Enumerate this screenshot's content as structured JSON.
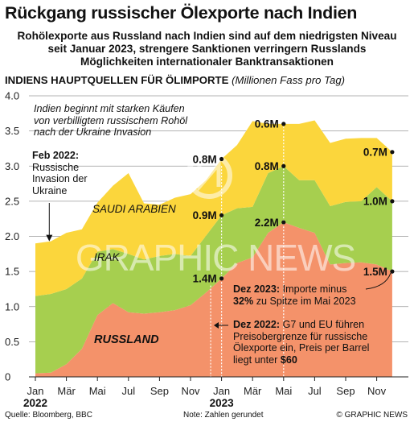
{
  "title": "Rückgang russischer Ölexporte nach Indien",
  "subtitle": [
    "Rohölexporte aus Russland nach Indien sind auf dem niedrigsten Niveau",
    "seit Januar 2023, strengere Sanktionen verringern Russlands",
    "Möglichkeiten internationaler Banktransaktionen"
  ],
  "heading": "INDIENS HAUPTQUELLEN FÜR ÖLIMPORTE",
  "unit": "(Millionen Fass pro Tag)",
  "chart_data": {
    "type": "area",
    "stacked": true,
    "title": "INDIENS HAUPTQUELLEN FÜR ÖLIMPORTE",
    "ylabel": "(Millionen Fass pro Tag)",
    "ylim": [
      0,
      4.0
    ],
    "yticks": [
      "0",
      "0.5",
      "1.0",
      "1.5",
      "2.0",
      "2.5",
      "3.0",
      "3.5",
      "4.0"
    ],
    "x": [
      "Jan 2022",
      "Feb 2022",
      "Mär 2022",
      "Apr 2022",
      "Mai 2022",
      "Jun 2022",
      "Jul 2022",
      "Aug 2022",
      "Sep 2022",
      "Okt 2022",
      "Nov 2022",
      "Dez 2022",
      "Jan 2023",
      "Feb 2023",
      "Mär 2023",
      "Apr 2023",
      "Mai 2023",
      "Jun 2023",
      "Jul 2023",
      "Aug 2023",
      "Sep 2023",
      "Okt 2023",
      "Nov 2023",
      "Dez 2023"
    ],
    "xticks": [
      "Jan",
      "Mär",
      "Mai",
      "Jul",
      "Sep",
      "Nov",
      "Jan",
      "Mär",
      "Mai",
      "Jul",
      "Sep",
      "Nov"
    ],
    "year_labels": [
      "2022",
      "2023"
    ],
    "series": [
      {
        "name": "RUSSLAND",
        "color": "#f4926a",
        "values": [
          0.05,
          0.06,
          0.18,
          0.4,
          0.88,
          1.05,
          0.92,
          0.9,
          0.92,
          0.95,
          1.02,
          1.2,
          1.4,
          1.62,
          1.7,
          2.05,
          2.2,
          2.12,
          2.05,
          1.6,
          1.62,
          1.63,
          1.6,
          1.5
        ]
      },
      {
        "name": "IRAK",
        "color": "#a6cf4f",
        "values": [
          1.1,
          1.12,
          1.07,
          1.0,
          0.9,
          0.77,
          0.83,
          0.77,
          0.8,
          0.8,
          0.7,
          0.81,
          0.9,
          0.78,
          0.72,
          0.85,
          0.8,
          0.68,
          0.75,
          0.83,
          0.87,
          0.87,
          1.1,
          1.0
        ]
      },
      {
        "name": "SAUDI ARABIEN",
        "color": "#fbd63c",
        "values": [
          0.75,
          0.75,
          0.8,
          0.7,
          0.7,
          0.9,
          1.15,
          0.8,
          0.73,
          0.8,
          0.88,
          0.79,
          0.8,
          0.9,
          1.22,
          0.7,
          0.6,
          0.8,
          0.85,
          0.9,
          0.9,
          0.9,
          0.7,
          0.7
        ]
      }
    ],
    "point_labels": [
      {
        "index": 12,
        "value": "1.4M"
      },
      {
        "index": 12,
        "value": "0.9M"
      },
      {
        "index": 12,
        "value": "0.8M"
      },
      {
        "index": 16,
        "value": "2.2M"
      },
      {
        "index": 16,
        "value": "0.8M"
      },
      {
        "index": 16,
        "value": "0.6M"
      },
      {
        "index": 23,
        "value": "1.5M"
      },
      {
        "index": 23,
        "value": "1.0M"
      },
      {
        "index": 23,
        "value": "0.7M"
      }
    ],
    "annotations": {
      "invasion_note": [
        "Indien beginnt mit starken Käufen",
        "von verbilligtem russischem Rohöl",
        "nach der Ukraine Invasion"
      ],
      "feb2022_title": "Feb 2022:",
      "feb2022_text": [
        "Russische",
        "Invasion der",
        "Ukraine"
      ],
      "dez2023_title": "Dez 2023:",
      "dez2023_text1": " Importe minus",
      "dez2023_bold": "32%",
      "dez2023_text2": " zu Spitze im Mai 2023",
      "dez2022_title": "Dez 2022:",
      "dez2022_text1": " G7 und EU führen",
      "dez2022_text2": [
        "Preisobergrenze für russische",
        "Ölexporte ein, Preis per Barrel"
      ],
      "dez2022_text3": "liegt unter ",
      "dez2022_bold": "$60"
    }
  },
  "watermark": "GRAPHIC NEWS",
  "footer": {
    "source": "Quelle: Bloomberg, BBC",
    "note": "Note: Zahlen gerundet",
    "copyright": "© GRAPHIC NEWS"
  }
}
